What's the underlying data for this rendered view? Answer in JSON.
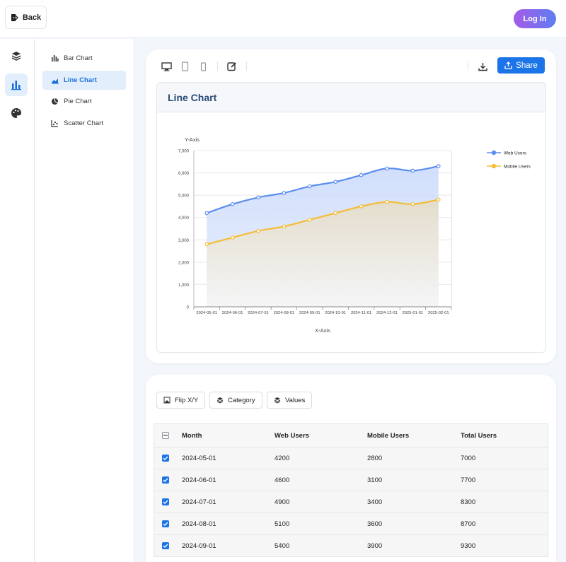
{
  "topbar": {
    "back_label": "Back",
    "login_label": "Log In"
  },
  "rail": {
    "items": [
      "layers-icon",
      "chart-bar-icon",
      "palette-icon"
    ],
    "active": 1
  },
  "menu": {
    "items": [
      {
        "label": "Bar Chart",
        "icon": "bar-chart-icon"
      },
      {
        "label": "Line Chart",
        "icon": "line-chart-icon",
        "active": true
      },
      {
        "label": "Pie Chart",
        "icon": "pie-chart-icon"
      },
      {
        "label": "Scatter Chart",
        "icon": "scatter-chart-icon"
      }
    ]
  },
  "toolbar": {
    "share_label": "Share"
  },
  "chart_card": {
    "title": "Line Chart"
  },
  "chart_data": {
    "type": "area",
    "x": [
      "2024-05-01",
      "2024-06-01",
      "2024-07-01",
      "2024-08-01",
      "2024-09-01",
      "2024-10-01",
      "2024-11-01",
      "2024-12-01",
      "2025-01-01",
      "2025-02-01"
    ],
    "series": [
      {
        "name": "Web Users",
        "values": [
          4200,
          4600,
          4900,
          5100,
          5400,
          5600,
          5900,
          6200,
          6100,
          6300
        ],
        "color": "#5b8def"
      },
      {
        "name": "Mobile Users",
        "values": [
          2800,
          3100,
          3400,
          3600,
          3900,
          4200,
          4500,
          4700,
          4600,
          4800
        ],
        "color": "#f4bd35"
      }
    ],
    "xlabel": "X-Axis",
    "ylabel": "Y-Axis",
    "ylim": [
      0,
      7000
    ],
    "yticks": [
      "0",
      "1,000",
      "2,000",
      "3,000",
      "4,000",
      "5,000",
      "6,000",
      "7,000"
    ],
    "grid": true,
    "legend": "top-right"
  },
  "options": {
    "flip_label": "Flip X/Y",
    "category_label": "Category",
    "values_label": "Values"
  },
  "table": {
    "columns": [
      "Month",
      "Web Users",
      "Mobile Users",
      "Total Users"
    ],
    "rows": [
      [
        "2024-05-01",
        "4200",
        "2800",
        "7000"
      ],
      [
        "2024-06-01",
        "4600",
        "3100",
        "7700"
      ],
      [
        "2024-07-01",
        "4900",
        "3400",
        "8300"
      ],
      [
        "2024-08-01",
        "5100",
        "3600",
        "8700"
      ],
      [
        "2024-09-01",
        "5400",
        "3900",
        "9300"
      ]
    ]
  }
}
